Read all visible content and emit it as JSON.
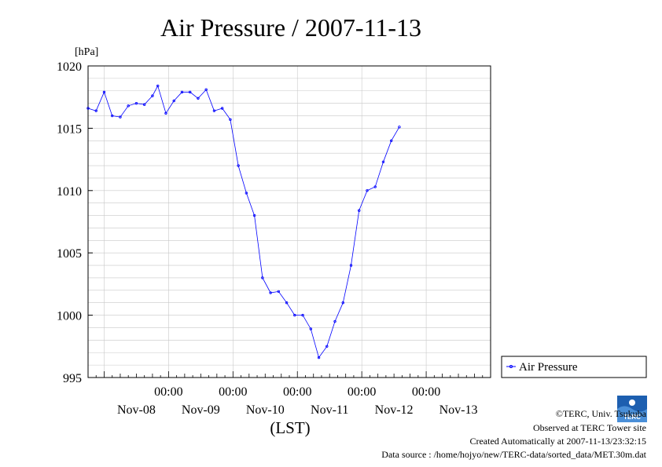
{
  "chart_data": {
    "type": "line",
    "title": "Air Pressure / 2007-11-13",
    "ylabel": "[hPa]",
    "xlabel": "(LST)",
    "ylim": [
      995,
      1020
    ],
    "yticks": [
      995,
      1000,
      1005,
      1010,
      1015,
      1020
    ],
    "x_axis": {
      "start": "2007-11-07 18:00",
      "end": "2007-11-13 24:00",
      "time_labels": [
        "00:00",
        "00:00",
        "00:00",
        "00:00",
        "00:00"
      ],
      "day_labels": [
        "Nov-08",
        "Nov-09",
        "Nov-10",
        "Nov-11",
        "Nov-12",
        "Nov-13"
      ]
    },
    "grid": true,
    "legend_position": "right",
    "series": [
      {
        "name": "Air Pressure",
        "color": "#0000ff",
        "points": [
          [
            "2007-11-07 18:00",
            1016.6
          ],
          [
            "2007-11-07 21:00",
            1016.4
          ],
          [
            "2007-11-08 00:00",
            1017.9
          ],
          [
            "2007-11-08 03:00",
            1016.0
          ],
          [
            "2007-11-08 06:00",
            1015.9
          ],
          [
            "2007-11-08 09:00",
            1016.8
          ],
          [
            "2007-11-08 12:00",
            1017.0
          ],
          [
            "2007-11-08 15:00",
            1016.9
          ],
          [
            "2007-11-08 18:00",
            1017.6
          ],
          [
            "2007-11-08 20:00",
            1018.4
          ],
          [
            "2007-11-08 23:00",
            1016.2
          ],
          [
            "2007-11-09 02:00",
            1017.2
          ],
          [
            "2007-11-09 05:00",
            1017.9
          ],
          [
            "2007-11-09 08:00",
            1017.9
          ],
          [
            "2007-11-09 11:00",
            1017.4
          ],
          [
            "2007-11-09 14:00",
            1018.1
          ],
          [
            "2007-11-09 17:00",
            1016.4
          ],
          [
            "2007-11-09 20:00",
            1016.6
          ],
          [
            "2007-11-09 23:00",
            1015.7
          ],
          [
            "2007-11-10 02:00",
            1012.0
          ],
          [
            "2007-11-10 05:00",
            1009.8
          ],
          [
            "2007-11-10 08:00",
            1008.0
          ],
          [
            "2007-11-10 11:00",
            1003.0
          ],
          [
            "2007-11-10 14:00",
            1001.8
          ],
          [
            "2007-11-10 17:00",
            1001.9
          ],
          [
            "2007-11-10 20:00",
            1001.0
          ],
          [
            "2007-11-10 23:00",
            1000.0
          ],
          [
            "2007-11-11 02:00",
            1000.0
          ],
          [
            "2007-11-11 05:00",
            998.9
          ],
          [
            "2007-11-11 08:00",
            996.6
          ],
          [
            "2007-11-11 11:00",
            997.5
          ],
          [
            "2007-11-11 14:00",
            999.5
          ],
          [
            "2007-11-11 17:00",
            1001.0
          ],
          [
            "2007-11-11 20:00",
            1004.0
          ],
          [
            "2007-11-11 23:00",
            1008.4
          ],
          [
            "2007-11-12 02:00",
            1010.0
          ],
          [
            "2007-11-12 05:00",
            1010.3
          ],
          [
            "2007-11-12 08:00",
            1012.3
          ],
          [
            "2007-11-12 11:00",
            1014.0
          ],
          [
            "2007-11-12 14:00",
            1015.1
          ]
        ]
      }
    ]
  },
  "credits": {
    "copyright": "©TERC, Univ. Tsukuba",
    "observed": "Observed at TERC Tower site",
    "created": "Created Automatically at 2007-11-13/23:32:15",
    "source": "Data source : /home/hojyo/new/TERC-data/sorted_data/MET.30m.dat",
    "logo_text": "TERC"
  }
}
